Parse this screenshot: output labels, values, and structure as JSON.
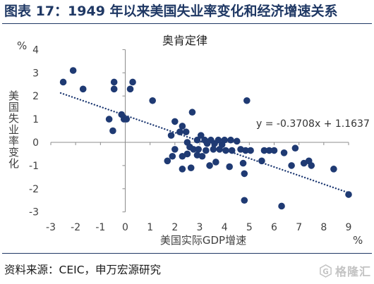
{
  "header": {
    "title": "图表 17：1949 年以来美国失业率变化和经济增速关系"
  },
  "chart_data": {
    "type": "scatter",
    "title": "奥肯定律",
    "xlabel": "美国实际GDP增速",
    "ylabel": "美国失业率变化",
    "x_unit": "%",
    "y_unit": "%",
    "xlim": [
      -3,
      9
    ],
    "ylim": [
      -3,
      4
    ],
    "xticks": [
      -3,
      -2,
      -1,
      0,
      1,
      2,
      3,
      4,
      5,
      6,
      7,
      8,
      9
    ],
    "yticks": [
      4,
      3,
      2,
      1,
      0,
      -1,
      -2,
      -3
    ],
    "grid": false,
    "legend": "none",
    "series": [
      {
        "points": [
          [
            -2.5,
            2.6
          ],
          [
            -2.1,
            3.1
          ],
          [
            -1.7,
            2.3
          ],
          [
            -0.45,
            2.6
          ],
          [
            -0.45,
            2.3
          ],
          [
            0.3,
            2.6
          ],
          [
            0.2,
            2.3
          ],
          [
            -0.15,
            1.2
          ],
          [
            -0.05,
            1.0
          ],
          [
            0.05,
            1.0
          ],
          [
            -0.65,
            1.0
          ],
          [
            -0.5,
            0.5
          ],
          [
            1.1,
            1.8
          ],
          [
            2.7,
            1.3
          ],
          [
            4.9,
            1.8
          ],
          [
            2.0,
            0.9
          ],
          [
            2.3,
            0.7
          ],
          [
            2.45,
            0.45
          ],
          [
            2.2,
            0.45
          ],
          [
            1.85,
            0.3
          ],
          [
            3.05,
            0.3
          ],
          [
            2.9,
            0.1
          ],
          [
            3.2,
            0.1
          ],
          [
            3.45,
            0.1
          ],
          [
            3.75,
            0.1
          ],
          [
            4.0,
            0.1
          ],
          [
            4.25,
            0.1
          ],
          [
            4.5,
            0.05
          ],
          [
            2.5,
            0.0
          ],
          [
            3.3,
            -0.05
          ],
          [
            3.6,
            -0.05
          ],
          [
            3.9,
            -0.1
          ],
          [
            4.65,
            -0.3
          ],
          [
            2.6,
            -0.2
          ],
          [
            2.75,
            -0.3
          ],
          [
            2.95,
            -0.3
          ],
          [
            3.25,
            -0.35
          ],
          [
            3.55,
            -0.3
          ],
          [
            3.8,
            -0.3
          ],
          [
            4.05,
            -0.35
          ],
          [
            4.3,
            -0.35
          ],
          [
            4.85,
            -0.35
          ],
          [
            5.05,
            -0.35
          ],
          [
            5.6,
            -0.35
          ],
          [
            5.8,
            -0.35
          ],
          [
            6.0,
            -0.35
          ],
          [
            6.4,
            -0.45
          ],
          [
            2.0,
            -0.3
          ],
          [
            2.5,
            -0.5
          ],
          [
            2.3,
            -0.6
          ],
          [
            1.9,
            -0.6
          ],
          [
            2.9,
            -0.55
          ],
          [
            3.1,
            -0.6
          ],
          [
            1.7,
            -0.8
          ],
          [
            3.65,
            -0.85
          ],
          [
            3.4,
            -1.0
          ],
          [
            4.2,
            -1.05
          ],
          [
            4.75,
            -0.9
          ],
          [
            2.3,
            -1.15
          ],
          [
            2.65,
            -1.1
          ],
          [
            4.8,
            -1.35
          ],
          [
            5.5,
            -0.8
          ],
          [
            6.85,
            -0.25
          ],
          [
            6.7,
            -1.0
          ],
          [
            7.2,
            -0.9
          ],
          [
            7.4,
            -0.8
          ],
          [
            7.5,
            -1.0
          ],
          [
            8.4,
            -1.15
          ],
          [
            9.0,
            -2.25
          ],
          [
            4.8,
            -2.5
          ],
          [
            6.3,
            -2.75
          ]
        ]
      }
    ],
    "trendline": {
      "type": "linear",
      "style": "dotted",
      "slope": -0.3708,
      "intercept": 1.1637,
      "x_range": [
        -2.6,
        9
      ],
      "equation": "y = -0.3708x + 1.1637"
    }
  },
  "footer": {
    "source": "资料来源：CEIC，申万宏源研究"
  },
  "watermark": {
    "logo_icon": "g-hexagon-logo-icon",
    "logo_letter": "G",
    "text": "格隆汇"
  },
  "colors": {
    "title": "#1f3864",
    "marker": "#1f3a73",
    "trendline": "#1f3a73",
    "axis": "#8c8c8c",
    "text": "#404040",
    "watermark": "#bdbdbd"
  }
}
